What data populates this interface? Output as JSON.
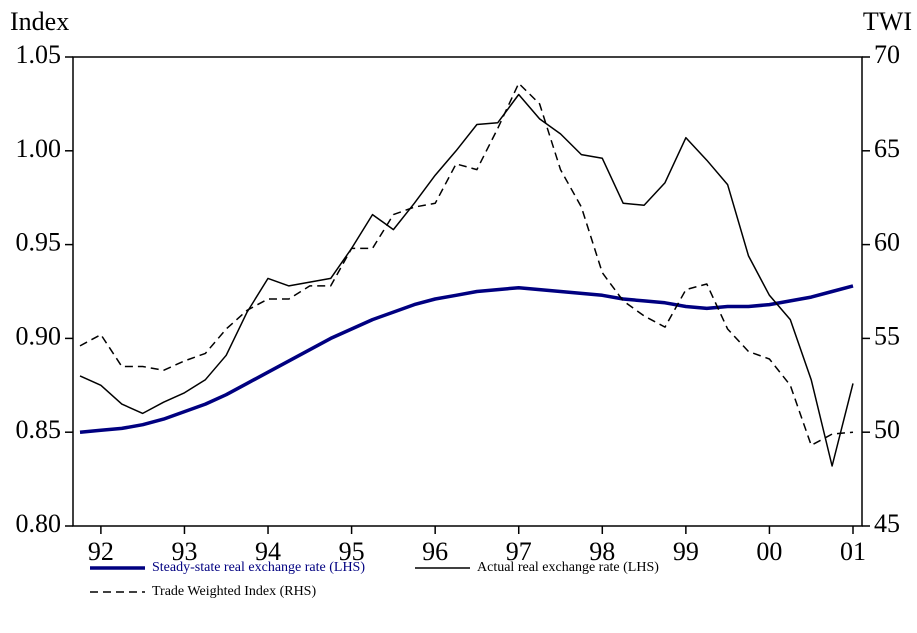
{
  "chart_data": {
    "type": "line",
    "y_label": "Index",
    "y2_label": "TWI",
    "categories": [
      null,
      "92",
      null,
      null,
      null,
      "93",
      null,
      null,
      null,
      "94",
      null,
      null,
      null,
      "95",
      null,
      null,
      null,
      "96",
      null,
      null,
      null,
      "97",
      null,
      null,
      null,
      "98",
      null,
      null,
      null,
      "99",
      null,
      null,
      null,
      "00",
      null,
      null,
      null,
      "01"
    ],
    "ylim": [
      0.8,
      1.05
    ],
    "yticks": [
      {
        "value": 0.8,
        "label": "0.80"
      },
      0.85,
      {
        "value": 0.9,
        "label": "0.90"
      },
      0.95,
      {
        "value": 1.0,
        "label": "1.00"
      },
      1.05
    ],
    "y2lim": [
      45,
      70
    ],
    "y2ticks": [
      45,
      50,
      55,
      60,
      65,
      70
    ],
    "series": [
      {
        "name": "Steady-state real exchange rate (LHS)",
        "color": "#000080",
        "width": 3.5,
        "line_style": "solid",
        "values": [
          0.85,
          0.851,
          0.852,
          0.854,
          0.857,
          0.861,
          0.865,
          0.87,
          0.876,
          0.882,
          0.888,
          0.894,
          0.9,
          0.905,
          0.91,
          0.914,
          0.918,
          0.921,
          0.923,
          0.925,
          0.926,
          0.927,
          0.926,
          0.925,
          0.924,
          0.923,
          0.921,
          0.92,
          0.919,
          0.917,
          0.916,
          0.917,
          0.917,
          0.918,
          0.92,
          0.922,
          0.925,
          0.928
        ]
      },
      {
        "name": "Actual real exchange rate (LHS)",
        "color": "#000000",
        "width": 1.5,
        "line_style": "solid",
        "values": [
          0.88,
          0.875,
          0.865,
          0.86,
          0.866,
          0.871,
          0.878,
          0.891,
          0.914,
          0.932,
          0.928,
          0.93,
          0.932,
          0.948,
          0.966,
          0.958,
          0.972,
          0.987,
          1.0,
          1.014,
          1.015,
          1.03,
          1.017,
          1.009,
          0.998,
          0.996,
          0.972,
          0.971,
          0.983,
          1.007,
          0.995,
          0.982,
          0.944,
          0.923,
          0.91,
          0.878,
          0.832,
          0.876
        ]
      },
      {
        "name": "Trade Weighted Index (RHS)",
        "color": "#000000",
        "width": 1.5,
        "line_style": "dashed",
        "axis": "y2",
        "values": [
          54.6,
          55.2,
          53.5,
          53.5,
          53.3,
          53.8,
          54.2,
          55.5,
          56.5,
          57.1,
          57.1,
          57.8,
          57.8,
          59.8,
          59.8,
          61.6,
          62.0,
          62.2,
          64.3,
          64.0,
          66.2,
          68.6,
          67.5,
          64.0,
          62.0,
          58.5,
          57.0,
          56.2,
          55.6,
          57.6,
          57.9,
          55.5,
          54.3,
          53.9,
          52.5,
          49.3,
          49.9,
          50.0
        ]
      }
    ]
  }
}
